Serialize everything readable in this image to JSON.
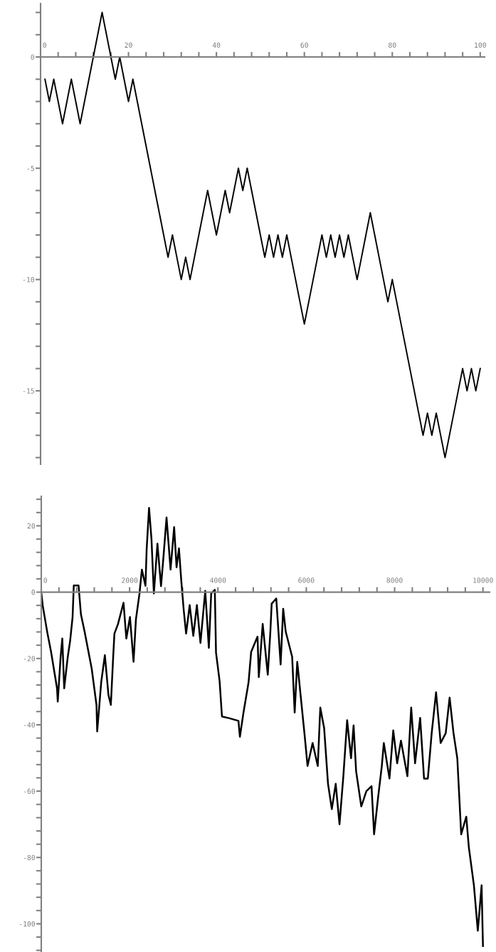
{
  "chart_data": [
    {
      "type": "line",
      "x": [
        1,
        2,
        3,
        4,
        5,
        6,
        7,
        8,
        9,
        10,
        11,
        12,
        13,
        14,
        15,
        16,
        17,
        18,
        19,
        20,
        21,
        22,
        23,
        24,
        25,
        26,
        27,
        28,
        29,
        30,
        31,
        32,
        33,
        34,
        35,
        36,
        37,
        38,
        39,
        40,
        41,
        42,
        43,
        44,
        45,
        46,
        47,
        48,
        49,
        50,
        51,
        52,
        53,
        54,
        55,
        56,
        57,
        58,
        59,
        60,
        61,
        62,
        63,
        64,
        65,
        66,
        67,
        68,
        69,
        70,
        71,
        72,
        73,
        74,
        75,
        76,
        77,
        78,
        79,
        80,
        81,
        82,
        83,
        84,
        85,
        86,
        87,
        88,
        89,
        90,
        91,
        92,
        93,
        94,
        95,
        96,
        97,
        98,
        99,
        100
      ],
      "series": [
        {
          "color": "#000000",
          "values": [
            -1,
            -2,
            -1,
            -2,
            -3,
            -2,
            -1,
            -2,
            -3,
            -2,
            -1,
            0,
            1,
            2,
            1,
            0,
            -1,
            0,
            -1,
            -2,
            -1,
            -2,
            -3,
            -4,
            -5,
            -6,
            -7,
            -8,
            -9,
            -8,
            -9,
            -10,
            -9,
            -10,
            -9,
            -8,
            -7,
            -6,
            -7,
            -8,
            -7,
            -6,
            -7,
            -6,
            -5,
            -6,
            -5,
            -6,
            -7,
            -8,
            -9,
            -8,
            -9,
            -8,
            -9,
            -8,
            -9,
            -10,
            -11,
            -12,
            -11,
            -10,
            -9,
            -8,
            -9,
            -8,
            -9,
            -8,
            -9,
            -8,
            -9,
            -10,
            -9,
            -8,
            -7,
            -8,
            -9,
            -10,
            -11,
            -10,
            -11,
            -12,
            -13,
            -14,
            -15,
            -16,
            -17,
            -16,
            -17,
            -16,
            -17,
            -18,
            -17,
            -16,
            -15,
            -14,
            -15,
            -14,
            -15,
            -14
          ]
        }
      ],
      "xlim": [
        0,
        101
      ],
      "ylim": [
        -18.3,
        2.4
      ],
      "xticks": [
        0,
        {
          "value": 4,
          "label": null
        },
        {
          "value": 8,
          "label": null
        },
        {
          "value": 12,
          "label": null
        },
        {
          "value": 16,
          "label": null
        },
        20,
        {
          "value": 24,
          "label": null
        },
        {
          "value": 28,
          "label": null
        },
        {
          "value": 32,
          "label": null
        },
        {
          "value": 36,
          "label": null
        },
        40,
        {
          "value": 44,
          "label": null
        },
        {
          "value": 48,
          "label": null
        },
        {
          "value": 52,
          "label": null
        },
        {
          "value": 56,
          "label": null
        },
        60,
        {
          "value": 64,
          "label": null
        },
        {
          "value": 68,
          "label": null
        },
        {
          "value": 72,
          "label": null
        },
        {
          "value": 76,
          "label": null
        },
        80,
        {
          "value": 84,
          "label": null
        },
        {
          "value": 88,
          "label": null
        },
        {
          "value": 92,
          "label": null
        },
        {
          "value": 96,
          "label": null
        },
        100
      ],
      "yticks": [
        {
          "value": 2,
          "label": null
        },
        {
          "value": 1,
          "label": null
        },
        0,
        {
          "value": -1,
          "label": null
        },
        {
          "value": -2,
          "label": null
        },
        {
          "value": -3,
          "label": null
        },
        {
          "value": -4,
          "label": null
        },
        -5,
        {
          "value": -6,
          "label": null
        },
        {
          "value": -7,
          "label": null
        },
        {
          "value": -8,
          "label": null
        },
        {
          "value": -9,
          "label": null
        },
        -10,
        {
          "value": -11,
          "label": null
        },
        {
          "value": -12,
          "label": null
        },
        {
          "value": -13,
          "label": null
        },
        {
          "value": -14,
          "label": null
        },
        -15,
        {
          "value": -16,
          "label": null
        },
        {
          "value": -17,
          "label": null
        },
        {
          "value": -18,
          "label": null
        }
      ]
    },
    {
      "type": "line",
      "x": [
        0,
        32,
        141,
        222,
        357,
        373,
        438,
        476,
        519,
        600,
        654,
        709,
        736,
        844,
        898,
        979,
        1141,
        1250,
        1266,
        1358,
        1440,
        1521,
        1575,
        1628,
        1656,
        1737,
        1862,
        1926,
        2008,
        2089,
        2143,
        2224,
        2278,
        2359,
        2386,
        2440,
        2495,
        2549,
        2630,
        2711,
        2765,
        2836,
        2927,
        3008,
        3063,
        3117,
        3171,
        3225,
        3279,
        3360,
        3442,
        3523,
        3604,
        3712,
        3794,
        3847,
        3929,
        3956,
        4037,
        4091,
        4253,
        4464,
        4497,
        4578,
        4693,
        4752,
        4896,
        4925,
        5013,
        5128,
        5187,
        5216,
        5320,
        5419,
        5477,
        5534,
        5680,
        5737,
        5795,
        5969,
        6028,
        6143,
        6260,
        6317,
        6404,
        6492,
        6578,
        6666,
        6752,
        6839,
        6925,
        7013,
        7071,
        7128,
        7245,
        7360,
        7477,
        7535,
        7622,
        7710,
        7755,
        7883,
        7969,
        8057,
        8143,
        8289,
        8375,
        8463,
        8578,
        8666,
        8752,
        8839,
        8938,
        9042,
        9157,
        9245,
        9333,
        9419,
        9507,
        9622,
        9680,
        9795,
        9883,
        9969,
        10000
      ],
      "series": [
        {
          "color": "#000000",
          "values": [
            0,
            -4,
            -12.5,
            -18,
            -29,
            -33,
            -19.5,
            -14,
            -29,
            -19.5,
            -14.6,
            -7.5,
            2,
            2,
            -6.7,
            -11.8,
            -23,
            -34,
            -42,
            -27,
            -19,
            -31,
            -34,
            -19.5,
            -12.5,
            -9.6,
            -3.2,
            -14,
            -7.5,
            -21,
            -8.2,
            -0.4,
            6.8,
            1.9,
            13,
            25.4,
            16,
            -0.4,
            14.6,
            1.8,
            10.4,
            22.5,
            6.8,
            19.6,
            7.5,
            13.2,
            3.2,
            -5.4,
            -12.5,
            -3.9,
            -13.2,
            -3.9,
            -15.3,
            0.4,
            -16.8,
            -0.4,
            0.7,
            -18.2,
            -26.8,
            -37.5,
            -38,
            -38.8,
            -43.6,
            -36.3,
            -27.2,
            -18,
            -13.4,
            -25.6,
            -9.6,
            -24.9,
            -11.8,
            -3.5,
            -1.9,
            -21.8,
            -5,
            -11.9,
            -19.5,
            -36.3,
            -21,
            -44,
            -52.4,
            -45.5,
            -52.4,
            -34.8,
            -41,
            -57.8,
            -65.4,
            -57.8,
            -70,
            -55.5,
            -38.6,
            -50.1,
            -40.2,
            -54,
            -64.6,
            -60,
            -58.5,
            -73,
            -62.3,
            -52.4,
            -45.5,
            -56.2,
            -41.7,
            -51.6,
            -44.8,
            -55.5,
            -34.8,
            -51.6,
            -37.9,
            -56.2,
            -56.2,
            -42.5,
            -30.2,
            -45.5,
            -42.5,
            -31.8,
            -42.5,
            -50.1,
            -73,
            -67.7,
            -76.9,
            -88.4,
            -102.1,
            -88.4,
            -106.7
          ]
        }
      ],
      "xlim": [
        0,
        10150
      ],
      "ylim": [
        -108.5,
        28.9
      ],
      "xticks": [
        0,
        {
          "value": 400,
          "label": null
        },
        {
          "value": 800,
          "label": null
        },
        {
          "value": 1200,
          "label": null
        },
        {
          "value": 1600,
          "label": null
        },
        2000,
        {
          "value": 2400,
          "label": null
        },
        {
          "value": 2800,
          "label": null
        },
        {
          "value": 3200,
          "label": null
        },
        {
          "value": 3600,
          "label": null
        },
        4000,
        {
          "value": 4400,
          "label": null
        },
        {
          "value": 4800,
          "label": null
        },
        {
          "value": 5200,
          "label": null
        },
        {
          "value": 5600,
          "label": null
        },
        6000,
        {
          "value": 6400,
          "label": null
        },
        {
          "value": 6800,
          "label": null
        },
        {
          "value": 7200,
          "label": null
        },
        {
          "value": 7600,
          "label": null
        },
        8000,
        {
          "value": 8400,
          "label": null
        },
        {
          "value": 8800,
          "label": null
        },
        {
          "value": 9200,
          "label": null
        },
        {
          "value": 9600,
          "label": null
        },
        10000
      ],
      "yticks": [
        {
          "value": 28,
          "label": null
        },
        {
          "value": 24,
          "label": null
        },
        20,
        {
          "value": 16,
          "label": null
        },
        {
          "value": 12,
          "label": null
        },
        {
          "value": 8,
          "label": null
        },
        {
          "value": 4,
          "label": null
        },
        0,
        {
          "value": -4,
          "label": null
        },
        {
          "value": -8,
          "label": null
        },
        {
          "value": -12,
          "label": null
        },
        {
          "value": -16,
          "label": null
        },
        -20,
        {
          "value": -24,
          "label": null
        },
        {
          "value": -28,
          "label": null
        },
        {
          "value": -32,
          "label": null
        },
        {
          "value": -36,
          "label": null
        },
        -40,
        {
          "value": -44,
          "label": null
        },
        {
          "value": -48,
          "label": null
        },
        {
          "value": -52,
          "label": null
        },
        {
          "value": -56,
          "label": null
        },
        -60,
        {
          "value": -64,
          "label": null
        },
        {
          "value": -68,
          "label": null
        },
        {
          "value": -72,
          "label": null
        },
        {
          "value": -76,
          "label": null
        },
        -80,
        {
          "value": -84,
          "label": null
        },
        {
          "value": -88,
          "label": null
        },
        {
          "value": -92,
          "label": null
        },
        {
          "value": -96,
          "label": null
        },
        -100,
        {
          "value": -104,
          "label": null
        },
        {
          "value": -108,
          "label": null
        }
      ]
    }
  ]
}
